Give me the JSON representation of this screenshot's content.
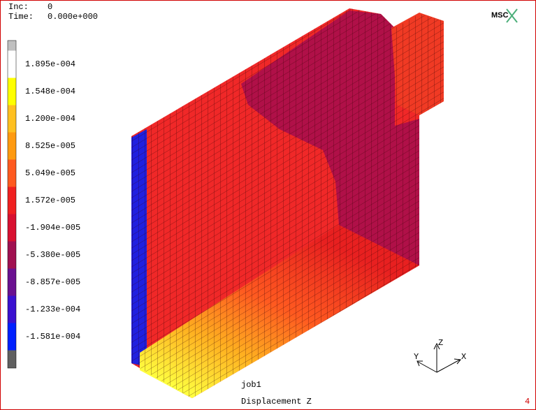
{
  "header": {
    "inc_label": "Inc:",
    "inc_value": "0",
    "time_label": "Time:",
    "time_value": "0.000e+000"
  },
  "legend": {
    "labels": [
      "1.895e-004",
      "1.548e-004",
      "1.200e-004",
      "8.525e-005",
      "5.049e-005",
      "1.572e-005",
      "-1.904e-005",
      "-5.380e-005",
      "-8.857e-005",
      "-1.233e-004",
      "-1.581e-004"
    ],
    "colors": [
      "#c0c0c0",
      "#ffffff",
      "#ffff00",
      "#ffc020",
      "#ff9a10",
      "#ff5a20",
      "#f02020",
      "#d81030",
      "#a01050",
      "#6a1090",
      "#3a10d0",
      "#0020ff",
      "#606060"
    ]
  },
  "logo": "MSC",
  "job": "job1",
  "result": "Displacement Z",
  "page": "4",
  "axes": {
    "x": "X",
    "y": "Y",
    "z": "Z"
  }
}
